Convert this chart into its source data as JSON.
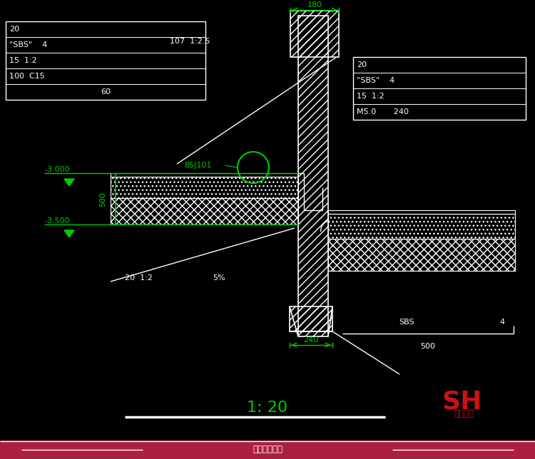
{
  "bg_color": "#000000",
  "line_color": "#ffffff",
  "green_color": "#00cc00",
  "red_color": "#cc1111",
  "title_bar_color": "#aa2040",
  "fig_width": 7.5,
  "fig_height": 6.44,
  "scale_text": "1: 20",
  "brand_large": "SH",
  "brand_small": "素材公社",
  "footer_text": "拾岚素材公社",
  "left_table": [
    "20",
    "\"SBS\"    4",
    "15  1:2",
    "100  C15",
    "60"
  ],
  "right_table": [
    "20",
    "\"SBS\"    4",
    "15  1:2",
    "M5.0       240"
  ],
  "dim_180": "180",
  "dim_107": "107  1:2.5",
  "dim_85j101": "85J101",
  "dim_minus3000": "-3.000",
  "dim_minus3500": "-3.500",
  "dim_500v": "500",
  "dim_20_1_2": "20  1:2",
  "dim_5pct": "5%",
  "dim_240": "240",
  "dim_sbs": "SBS",
  "dim_sbs4": "4",
  "dim_500b": "500"
}
